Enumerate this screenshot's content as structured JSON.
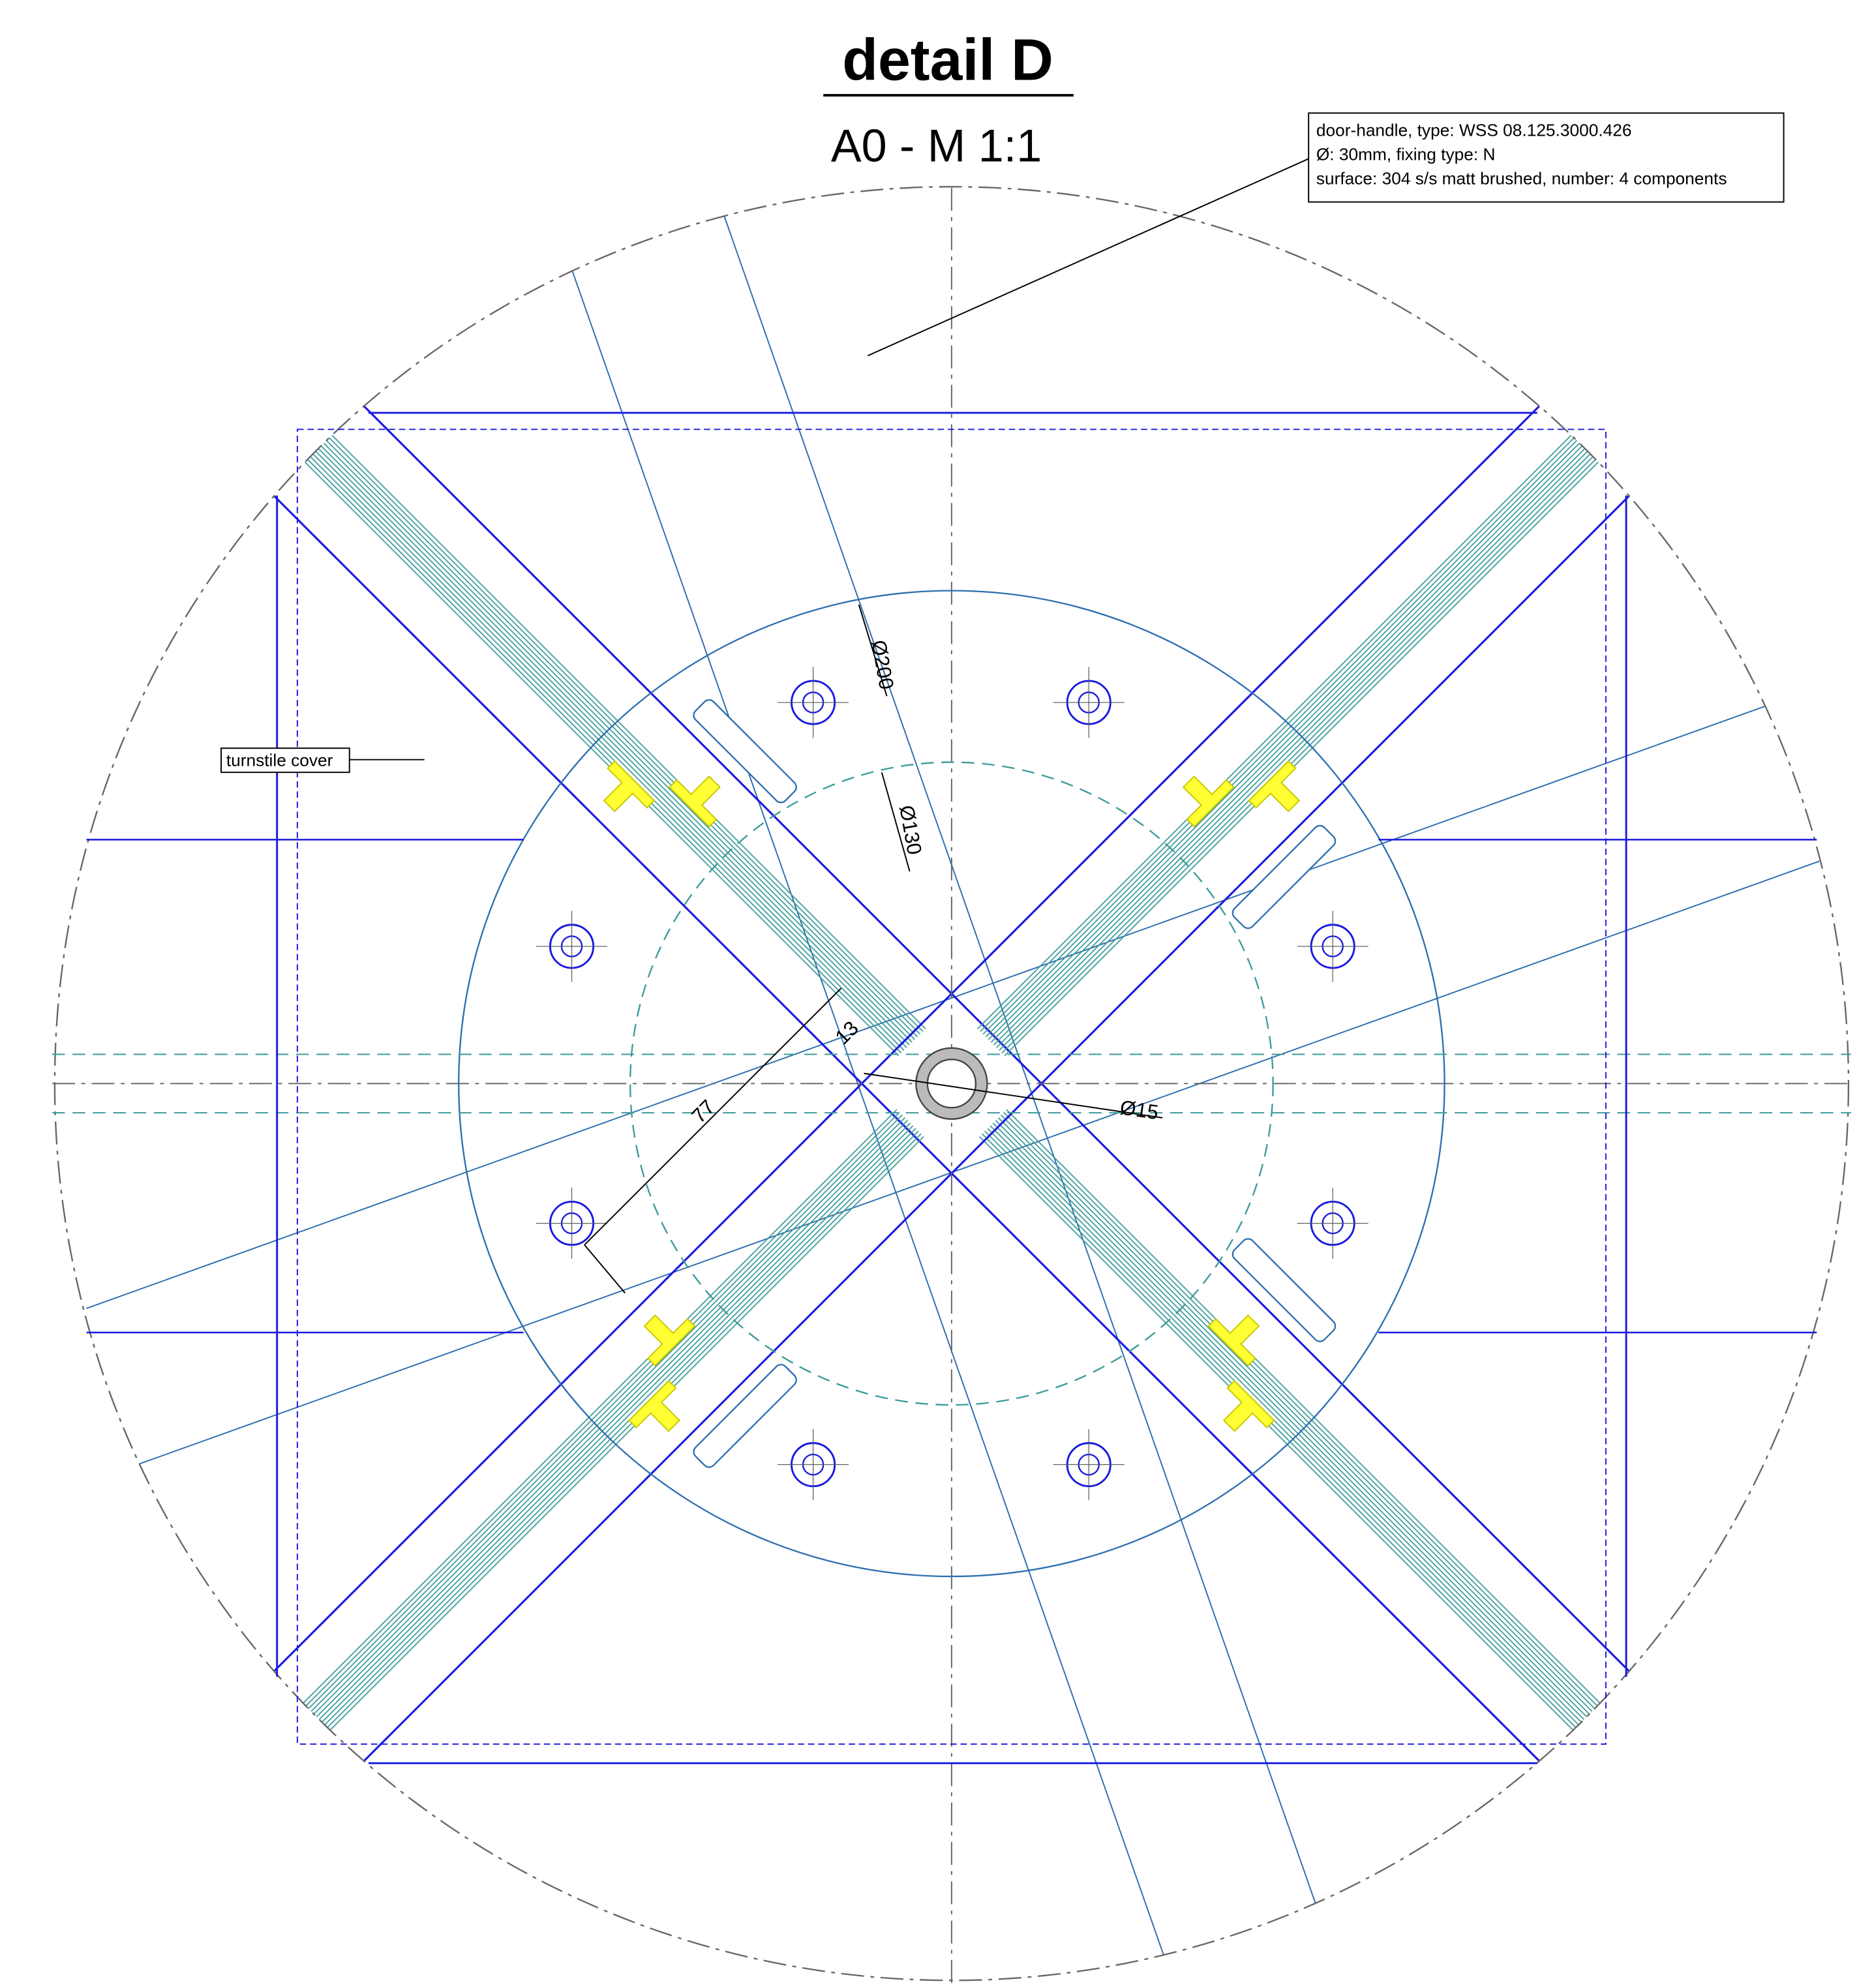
{
  "title": "detail D",
  "scale": "A0 - M 1:1",
  "callouts": {
    "door_handle": [
      "door-handle, type: WSS 08.125.3000.426",
      "Ø: 30mm, fixing type: N",
      "surface: 304 s/s matt brushed, number: 4 components"
    ],
    "turnstile_cover": "turnstile cover"
  },
  "dimensions": {
    "outer_diameter": "Ø200",
    "dashed_diameter": "Ø130",
    "glass_offset": "13",
    "radius": "77",
    "axle_diameter": "Ø15"
  }
}
